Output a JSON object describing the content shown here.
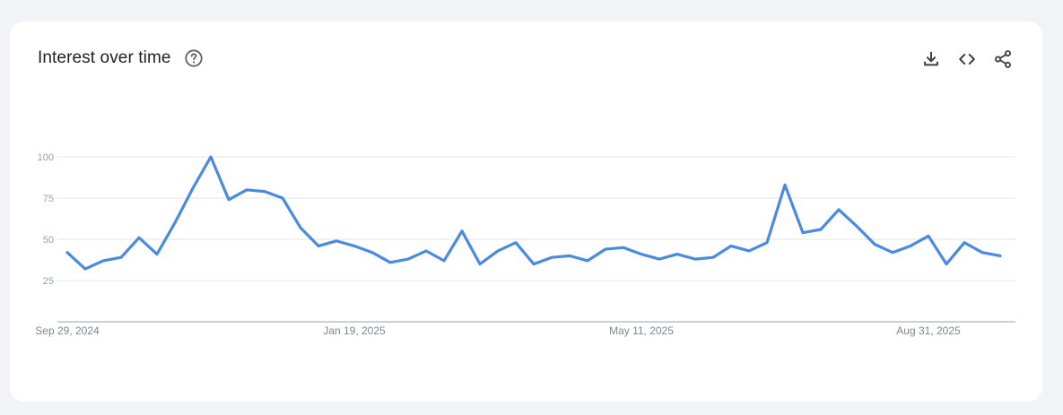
{
  "header": {
    "title": "Interest over time",
    "help_icon": "help-circle-icon"
  },
  "actions": [
    {
      "name": "download-button",
      "icon": "download-icon"
    },
    {
      "name": "embed-button",
      "icon": "code-icon"
    },
    {
      "name": "share-button",
      "icon": "share-icon"
    }
  ],
  "colors": {
    "line": "#4a8ae0",
    "grid": "#e3e5e8",
    "axis": "#9aa0a6"
  },
  "chart_data": {
    "type": "line",
    "title": "Interest over time",
    "xlabel": "",
    "ylabel": "",
    "ylim": [
      0,
      100
    ],
    "yticks": [
      25,
      50,
      75,
      100
    ],
    "xtick_labels": [
      "Sep 29, 2024",
      "Jan 19, 2025",
      "May 11, 2025",
      "Aug 31, 2025"
    ],
    "xtick_indices": [
      0,
      16,
      32,
      48
    ],
    "grid": true,
    "series": [
      {
        "values": [
          42,
          32,
          37,
          39,
          51,
          41,
          60,
          81,
          100,
          74,
          80,
          79,
          75,
          57,
          46,
          49,
          46,
          42,
          36,
          38,
          43,
          37,
          55,
          35,
          43,
          48,
          35,
          39,
          40,
          37,
          44,
          45,
          41,
          38,
          41,
          38,
          39,
          46,
          43,
          48,
          83,
          54,
          56,
          68,
          58,
          47,
          42,
          46,
          52,
          35,
          48,
          42,
          40
        ]
      }
    ]
  }
}
